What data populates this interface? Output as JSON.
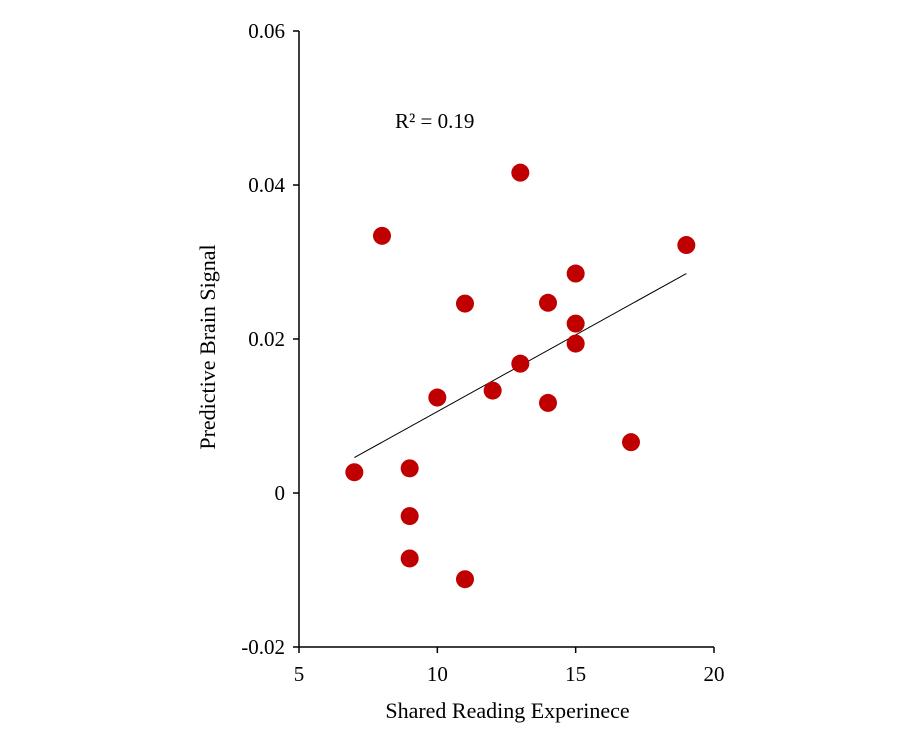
{
  "chart_data": {
    "type": "scatter",
    "xlabel": "Shared Reading Experinece",
    "ylabel": "Predictive Brain Signal",
    "xlim": [
      5,
      20
    ],
    "ylim": [
      -0.02,
      0.06
    ],
    "xticks": [
      5,
      10,
      15,
      20
    ],
    "xtick_labels": [
      "5",
      "10",
      "15",
      "20"
    ],
    "yticks": [
      -0.02,
      0,
      0.02,
      0.04,
      0.06
    ],
    "ytick_labels": [
      "-0.02",
      "0",
      "0.02",
      "0.04",
      "0.06"
    ],
    "grid": false,
    "annotation": "R² = 0.19",
    "marker_color": "#c00000",
    "trendline_color": "#000000",
    "points": [
      {
        "x": 7,
        "y": 0.0027
      },
      {
        "x": 8,
        "y": 0.0334
      },
      {
        "x": 9,
        "y": 0.0032
      },
      {
        "x": 9,
        "y": -0.003
      },
      {
        "x": 9,
        "y": -0.0085
      },
      {
        "x": 10,
        "y": 0.0124
      },
      {
        "x": 11,
        "y": 0.0246
      },
      {
        "x": 11,
        "y": -0.0112
      },
      {
        "x": 12,
        "y": 0.0133
      },
      {
        "x": 13,
        "y": 0.0416
      },
      {
        "x": 13,
        "y": 0.0168
      },
      {
        "x": 14,
        "y": 0.0247
      },
      {
        "x": 14,
        "y": 0.0117
      },
      {
        "x": 15,
        "y": 0.0285
      },
      {
        "x": 15,
        "y": 0.022
      },
      {
        "x": 15,
        "y": 0.0194
      },
      {
        "x": 17,
        "y": 0.0066
      },
      {
        "x": 19,
        "y": 0.0322
      }
    ],
    "trendline": {
      "x": [
        7,
        19
      ],
      "y": [
        0.0046,
        0.0285
      ]
    }
  }
}
